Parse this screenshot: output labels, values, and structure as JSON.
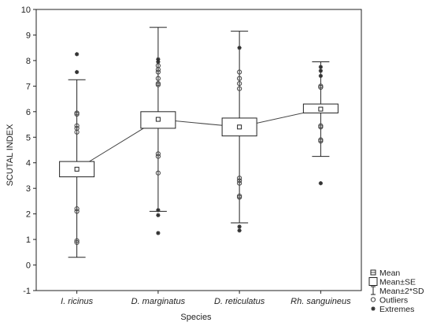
{
  "chart_data": {
    "type": "box",
    "title": "",
    "xlabel": "Species",
    "ylabel": "SCUTAL INDEX",
    "ylim": [
      -1,
      10
    ],
    "yticks": [
      -1,
      0,
      1,
      2,
      3,
      4,
      5,
      6,
      7,
      8,
      9,
      10
    ],
    "grid": false,
    "legend_position": "bottom-right",
    "categories": [
      "I. ricinus",
      "D. marginatus",
      "D. reticulatus",
      "Rh. sanguineus"
    ],
    "series": [
      {
        "category": "I. ricinus",
        "mean": 3.75,
        "se_low": 3.45,
        "se_high": 4.05,
        "sd2_low": 0.3,
        "sd2_high": 7.25,
        "outliers": [
          5.95,
          5.9,
          5.45,
          5.35,
          5.2,
          2.2,
          2.1,
          0.95,
          0.88
        ],
        "extremes": [
          8.25,
          7.55
        ]
      },
      {
        "category": "D. marginatus",
        "mean": 5.7,
        "se_low": 5.35,
        "se_high": 6.0,
        "sd2_low": 2.1,
        "sd2_high": 9.3,
        "outliers": [
          7.8,
          7.65,
          7.55,
          7.3,
          7.1,
          7.05,
          4.35,
          4.25,
          3.6
        ],
        "extremes": [
          8.05,
          7.95,
          2.15,
          1.95,
          1.25
        ]
      },
      {
        "category": "D. reticulatus",
        "mean": 5.4,
        "se_low": 5.05,
        "se_high": 5.75,
        "sd2_low": 1.65,
        "sd2_high": 9.15,
        "outliers": [
          7.55,
          7.3,
          7.1,
          6.9,
          3.4,
          3.3,
          3.2,
          2.7,
          2.65
        ],
        "extremes": [
          8.5,
          1.5,
          1.35
        ]
      },
      {
        "category": "Rh. sanguineus",
        "mean": 6.1,
        "se_low": 5.95,
        "se_high": 6.3,
        "sd2_low": 4.25,
        "sd2_high": 7.95,
        "outliers": [
          7.0,
          6.95,
          5.45,
          5.4,
          4.9,
          4.85
        ],
        "extremes": [
          7.75,
          7.6,
          7.4,
          3.2
        ]
      }
    ],
    "legend": [
      {
        "symbol": "mean",
        "label": "Mean"
      },
      {
        "symbol": "box",
        "label": "Mean±SE"
      },
      {
        "symbol": "whisker",
        "label": "Mean±2*SD"
      },
      {
        "symbol": "outlier",
        "label": "Outliers"
      },
      {
        "symbol": "extreme",
        "label": "Extremes"
      }
    ]
  }
}
